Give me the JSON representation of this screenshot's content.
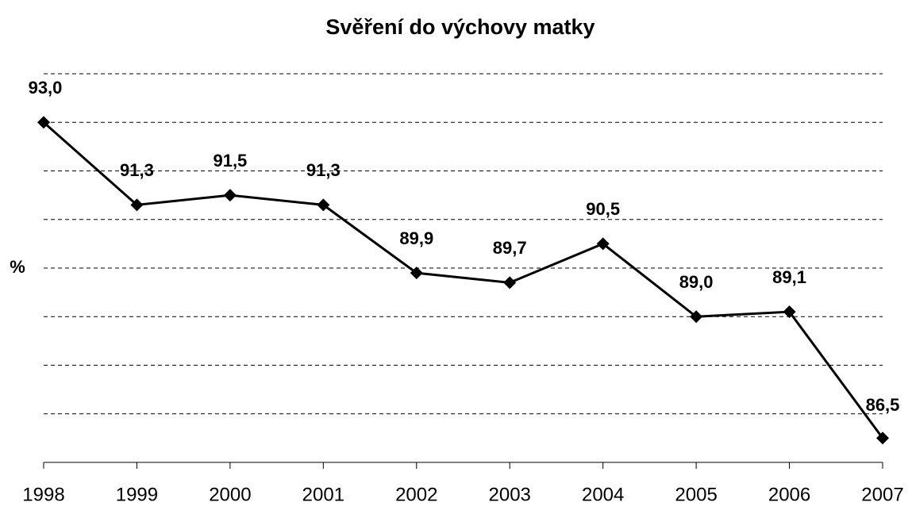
{
  "chart_data": {
    "type": "line",
    "title": "Svěření do výchovy matky",
    "y_label": "%",
    "categories": [
      "1998",
      "1999",
      "2000",
      "2001",
      "2002",
      "2003",
      "2004",
      "2005",
      "2006",
      "2007"
    ],
    "series": [
      {
        "name": "Svěření do výchovy matky",
        "color": "#000000",
        "values": [
          93.0,
          91.3,
          91.5,
          91.3,
          89.9,
          89.7,
          90.5,
          89.0,
          89.1,
          86.5
        ],
        "value_labels": [
          "93,0",
          "91,3",
          "91,5",
          "91,3",
          "89,9",
          "89,7",
          "90,5",
          "89,0",
          "89,1",
          "86,5"
        ]
      }
    ],
    "ylim": [
      86,
      94
    ],
    "yticks": [
      86,
      87,
      88,
      89,
      90,
      91,
      92,
      93,
      94
    ],
    "grid": true
  }
}
